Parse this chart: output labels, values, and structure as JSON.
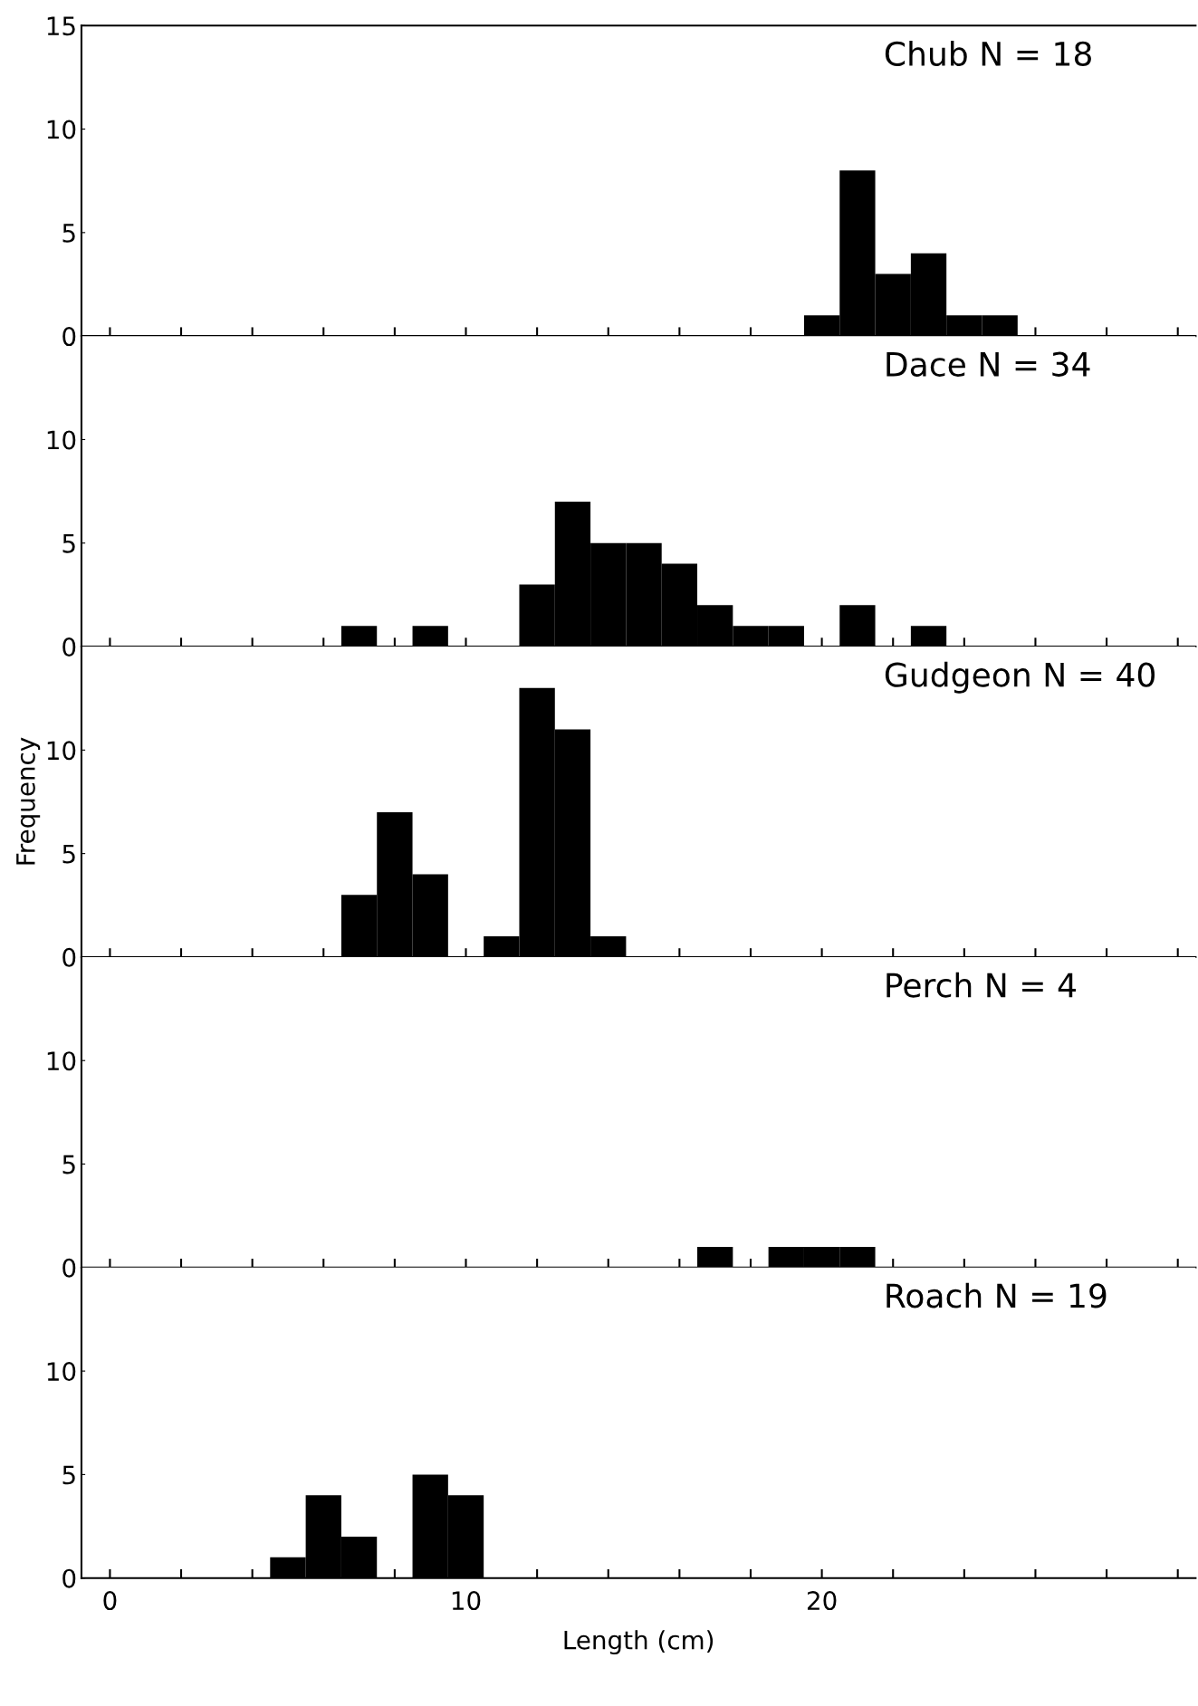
{
  "chart_data": [
    {
      "type": "histogram",
      "bins": [
        19.5,
        20.5,
        21.5,
        22.5,
        23.5,
        24.5,
        25.5
      ],
      "values": [
        1,
        8,
        3,
        4,
        1,
        1
      ],
      "color": "#000000",
      "xlim": [
        -0.8,
        30.5
      ],
      "xticks": [
        0,
        {
          "value": 2,
          "label": null
        },
        {
          "value": 4,
          "label": null
        },
        {
          "value": 6,
          "label": null
        },
        {
          "value": 8,
          "label": null
        },
        10,
        {
          "value": 12,
          "label": null
        },
        {
          "value": 14,
          "label": null
        },
        {
          "value": 16,
          "label": null
        },
        {
          "value": 18,
          "label": null
        },
        20,
        {
          "value": 22,
          "label": null
        },
        {
          "value": 24,
          "label": null
        },
        {
          "value": 26,
          "label": null
        },
        {
          "value": 28,
          "label": null
        },
        {
          "value": 30,
          "label": null
        }
      ],
      "ylim": [
        0,
        15
      ],
      "yticks": [
        0,
        5,
        10,
        15
      ],
      "tick_labels": "y",
      "annotations": [
        "Chub N = 18"
      ]
    },
    {
      "type": "histogram",
      "bins": [
        6.5,
        7.5,
        8.5,
        9.5,
        10.5,
        11.5,
        12.5,
        13.5,
        14.5,
        15.5,
        16.5,
        17.5,
        18.5,
        19.5,
        20.5,
        21.5,
        22.5,
        23.5
      ],
      "values": [
        1,
        0,
        1,
        0,
        0,
        3,
        7,
        5,
        5,
        4,
        2,
        1,
        1,
        0,
        2,
        0,
        1
      ],
      "color": "#000000",
      "xlim": [
        -0.8,
        30.5
      ],
      "xticks": [
        0,
        {
          "value": 2,
          "label": null
        },
        {
          "value": 4,
          "label": null
        },
        {
          "value": 6,
          "label": null
        },
        {
          "value": 8,
          "label": null
        },
        10,
        {
          "value": 12,
          "label": null
        },
        {
          "value": 14,
          "label": null
        },
        {
          "value": 16,
          "label": null
        },
        {
          "value": 18,
          "label": null
        },
        20,
        {
          "value": 22,
          "label": null
        },
        {
          "value": 24,
          "label": null
        },
        {
          "value": 26,
          "label": null
        },
        {
          "value": 28,
          "label": null
        },
        {
          "value": 30,
          "label": null
        }
      ],
      "ylim": [
        0,
        15
      ],
      "yticks": [
        0,
        5,
        10
      ],
      "tick_labels": "y",
      "annotations": [
        "Dace N = 34"
      ]
    },
    {
      "type": "histogram",
      "bins": [
        6.5,
        7.5,
        8.5,
        9.5,
        10.5,
        11.5,
        12.5,
        13.5,
        14.5
      ],
      "values": [
        3,
        7,
        4,
        0,
        1,
        13,
        11,
        1
      ],
      "color": "#000000",
      "xlim": [
        -0.8,
        30.5
      ],
      "xticks": [
        0,
        {
          "value": 2,
          "label": null
        },
        {
          "value": 4,
          "label": null
        },
        {
          "value": 6,
          "label": null
        },
        {
          "value": 8,
          "label": null
        },
        10,
        {
          "value": 12,
          "label": null
        },
        {
          "value": 14,
          "label": null
        },
        {
          "value": 16,
          "label": null
        },
        {
          "value": 18,
          "label": null
        },
        20,
        {
          "value": 22,
          "label": null
        },
        {
          "value": 24,
          "label": null
        },
        {
          "value": 26,
          "label": null
        },
        {
          "value": 28,
          "label": null
        },
        {
          "value": 30,
          "label": null
        }
      ],
      "ylim": [
        0,
        15
      ],
      "yticks": [
        0,
        5,
        10
      ],
      "tick_labels": "y",
      "ylabel": "Frequency",
      "annotations": [
        "Gudgeon N = 40"
      ]
    },
    {
      "type": "histogram",
      "bins": [
        16.5,
        17.5,
        18.5,
        19.5,
        20.5,
        21.5
      ],
      "values": [
        1,
        0,
        1,
        1,
        1
      ],
      "color": "#000000",
      "xlim": [
        -0.8,
        30.5
      ],
      "xticks": [
        0,
        {
          "value": 2,
          "label": null
        },
        {
          "value": 4,
          "label": null
        },
        {
          "value": 6,
          "label": null
        },
        {
          "value": 8,
          "label": null
        },
        10,
        {
          "value": 12,
          "label": null
        },
        {
          "value": 14,
          "label": null
        },
        {
          "value": 16,
          "label": null
        },
        {
          "value": 18,
          "label": null
        },
        20,
        {
          "value": 22,
          "label": null
        },
        {
          "value": 24,
          "label": null
        },
        {
          "value": 26,
          "label": null
        },
        {
          "value": 28,
          "label": null
        },
        {
          "value": 30,
          "label": null
        }
      ],
      "ylim": [
        0,
        15
      ],
      "yticks": [
        0,
        5,
        10
      ],
      "tick_labels": "y",
      "annotations": [
        "Perch N = 4"
      ]
    },
    {
      "type": "histogram",
      "bins": [
        4.5,
        5.5,
        6.5,
        7.5,
        8.5,
        9.5,
        10.5
      ],
      "values": [
        1,
        4,
        2,
        0,
        5,
        4
      ],
      "color": "#000000",
      "xlim": [
        -0.8,
        30.5
      ],
      "xticks": [
        0,
        {
          "value": 2,
          "label": null
        },
        {
          "value": 4,
          "label": null
        },
        {
          "value": 6,
          "label": null
        },
        {
          "value": 8,
          "label": null
        },
        10,
        {
          "value": 12,
          "label": null
        },
        {
          "value": 14,
          "label": null
        },
        {
          "value": 16,
          "label": null
        },
        {
          "value": 18,
          "label": null
        },
        20,
        {
          "value": 22,
          "label": null
        },
        {
          "value": 24,
          "label": null
        },
        {
          "value": 26,
          "label": null
        },
        {
          "value": 28,
          "label": null
        },
        {
          "value": 30,
          "label": null
        }
      ],
      "ylim": [
        0,
        15
      ],
      "yticks": [
        0,
        5,
        10
      ],
      "xlabel": "Length (cm)",
      "annotations": [
        "Roach N = 19"
      ]
    }
  ]
}
